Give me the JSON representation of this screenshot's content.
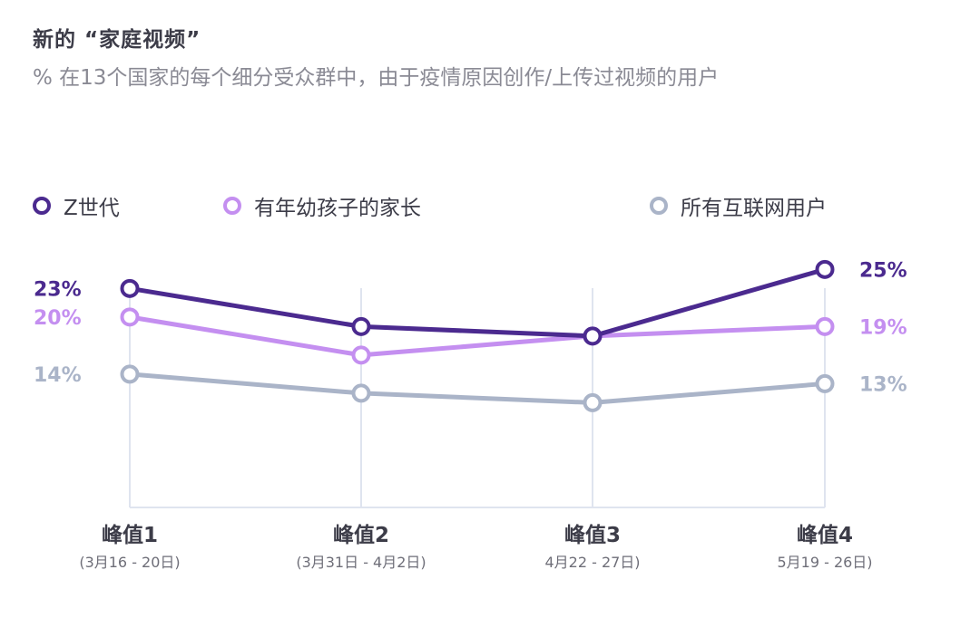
{
  "title": "新的 “家庭视频”",
  "subtitle": "% 在13个国家的每个细分受众群中，由于疫情原因创作/上传过视频的用户",
  "legend": [
    {
      "label": "Z世代",
      "color": "#4b2a8f"
    },
    {
      "label": "有年幼孩子的家长",
      "color": "#c48ff0"
    },
    {
      "label": "所有互联网用户",
      "color": "#aab4c8"
    }
  ],
  "chart_data": {
    "type": "line",
    "categories": [
      "峰值1",
      "峰值2",
      "峰值3",
      "峰值4"
    ],
    "category_dates": [
      "(3月16 - 20日)",
      "(3月31日 - 4月2日)",
      "4月22 - 27日)",
      "5月19 - 26日)"
    ],
    "series": [
      {
        "name": "Z世代",
        "values": [
          23,
          19,
          18,
          25
        ],
        "color": "#4b2a8f",
        "start_label": "23%",
        "end_label": "25%"
      },
      {
        "name": "有年幼孩子的家长",
        "values": [
          20,
          16,
          18,
          19
        ],
        "color": "#c48ff0",
        "start_label": "20%",
        "end_label": "19%"
      },
      {
        "name": "所有互联网用户",
        "values": [
          14,
          12,
          11,
          13
        ],
        "color": "#aab4c8",
        "start_label": "14%",
        "end_label": "13%"
      }
    ],
    "ylim": [
      0,
      27
    ],
    "grid": "vertical lines at categories",
    "legend_position": "top",
    "xlabel": "",
    "ylabel": ""
  }
}
